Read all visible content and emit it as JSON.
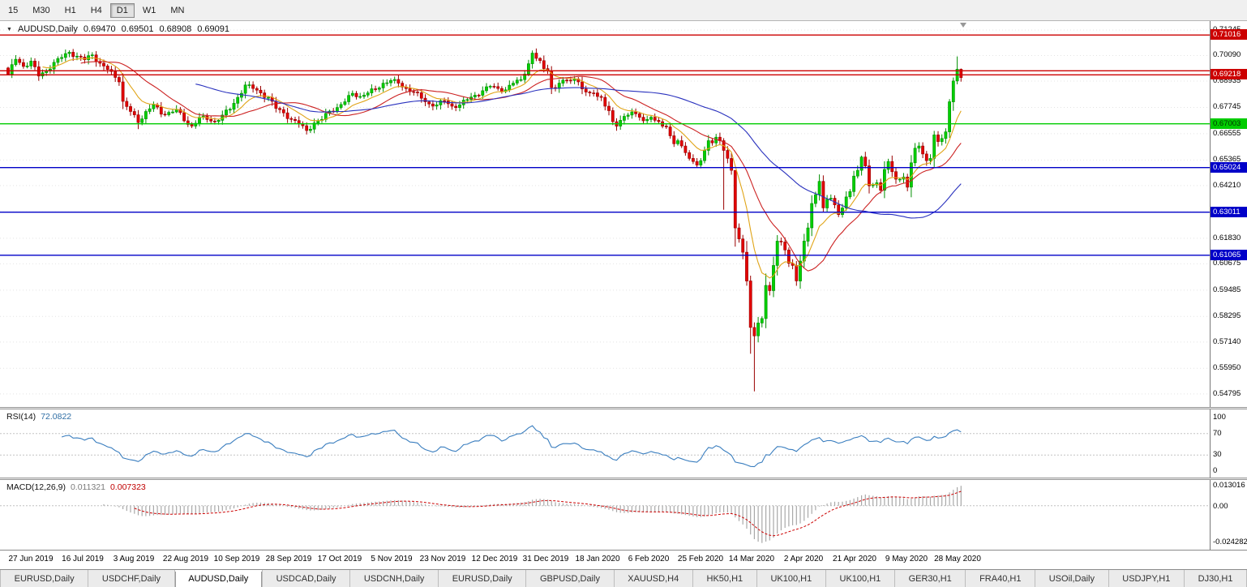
{
  "toolbar": {
    "timeframes": [
      {
        "label": "15",
        "active": false
      },
      {
        "label": "M30",
        "active": false
      },
      {
        "label": "H1",
        "active": false
      },
      {
        "label": "H4",
        "active": false
      },
      {
        "label": "D1",
        "active": true
      },
      {
        "label": "W1",
        "active": false
      },
      {
        "label": "MN",
        "active": false
      }
    ]
  },
  "tabs": {
    "items": [
      {
        "label": "EURUSD,Daily",
        "active": false
      },
      {
        "label": "USDCHF,Daily",
        "active": false
      },
      {
        "label": "AUDUSD,Daily",
        "active": true
      },
      {
        "label": "USDCAD,Daily",
        "active": false
      },
      {
        "label": "USDCNH,Daily",
        "active": false
      },
      {
        "label": "EURUSD,Daily",
        "active": false
      },
      {
        "label": "GBPUSD,Daily",
        "active": false
      },
      {
        "label": "XAUUSD,H4",
        "active": false
      },
      {
        "label": "HK50,H1",
        "active": false
      },
      {
        "label": "UK100,H1",
        "active": false
      },
      {
        "label": "UK100,H1",
        "active": false
      },
      {
        "label": "GER30,H1",
        "active": false
      },
      {
        "label": "FRA40,H1",
        "active": false
      },
      {
        "label": "USOil,Daily",
        "active": false
      },
      {
        "label": "USDJPY,H1",
        "active": false
      },
      {
        "label": "DJ30,H1",
        "active": false
      }
    ]
  },
  "chart_data": {
    "type": "candlestick+indicators",
    "header": {
      "dropdown_icon": "▼",
      "symbol": "AUDUSD,Daily",
      "open": "0.69470",
      "high": "0.69501",
      "low": "0.68908",
      "close": "0.69091"
    },
    "candle_count": 250,
    "price_range": {
      "max": 0.715,
      "min": 0.5435
    },
    "y_axis_labels": [
      "0.71245",
      "0.70090",
      "0.68935",
      "0.67745",
      "0.66555",
      "0.65365",
      "0.64210",
      "0.63020",
      "0.61830",
      "0.60675",
      "0.59485",
      "0.58295",
      "0.57140",
      "0.55950",
      "0.54795"
    ],
    "x_labels": [
      "27 Jun 2019",
      "16 Jul 2019",
      "3 Aug 2019",
      "22 Aug 2019",
      "10 Sep 2019",
      "28 Sep 2019",
      "17 Oct 2019",
      "5 Nov 2019",
      "23 Nov 2019",
      "12 Dec 2019",
      "31 Dec 2019",
      "18 Jan 2020",
      "6 Feb 2020",
      "25 Feb 2020",
      "14 Mar 2020",
      "2 Apr 2020",
      "21 Apr 2020",
      "9 May 2020",
      "28 May 2020"
    ],
    "levels": [
      {
        "price": 0.71016,
        "value": "0.71016",
        "color": "#cc0000",
        "text": "#ffffff",
        "badge": true
      },
      {
        "price": 0.694,
        "value": "0.69400",
        "color": "#cc0000",
        "text": "#ffffff",
        "badge": false
      },
      {
        "price": 0.69218,
        "value": "0.69218",
        "color": "#cc0000",
        "text": "#ffffff",
        "badge": true
      },
      {
        "price": 0.67003,
        "value": "0.67003",
        "color": "#00cc00",
        "text": "#003300",
        "badge": true
      },
      {
        "price": 0.65024,
        "value": "0.65024",
        "color": "#0000c8",
        "text": "#ffffff",
        "badge": true
      },
      {
        "price": 0.63011,
        "value": "0.63011",
        "color": "#0000c8",
        "text": "#ffffff",
        "badge": true
      },
      {
        "price": 0.61065,
        "value": "0.61065",
        "color": "#0000c8",
        "text": "#ffffff",
        "badge": true
      }
    ],
    "colors": {
      "up": "#008f00",
      "up_fill": "#00cf00",
      "down": "#990000",
      "down_fill": "#e30000"
    },
    "moving_averages": [
      {
        "name": "ma-fast-line",
        "kind": "ema",
        "period": 10,
        "color": "#e0a417"
      },
      {
        "name": "ma-mid-line",
        "kind": "sma",
        "period": 20,
        "color": "#cc2222"
      },
      {
        "name": "ma-slow-line",
        "kind": "sma",
        "period": 50,
        "color": "#2a32bE"
      }
    ],
    "close_anchors": [
      [
        0,
        0.6925
      ],
      [
        2,
        0.6992
      ],
      [
        4,
        0.696
      ],
      [
        6,
        0.6984
      ],
      [
        8,
        0.6916
      ],
      [
        10,
        0.694
      ],
      [
        12,
        0.6978
      ],
      [
        14,
        0.7
      ],
      [
        16,
        0.7024
      ],
      [
        18,
        0.7006
      ],
      [
        20,
        0.699
      ],
      [
        22,
        0.7012
      ],
      [
        24,
        0.6974
      ],
      [
        26,
        0.6946
      ],
      [
        28,
        0.691
      ],
      [
        29,
        0.689
      ],
      [
        30,
        0.6802
      ],
      [
        32,
        0.6756
      ],
      [
        34,
        0.6706
      ],
      [
        36,
        0.6756
      ],
      [
        38,
        0.6786
      ],
      [
        40,
        0.6744
      ],
      [
        42,
        0.6752
      ],
      [
        44,
        0.6766
      ],
      [
        46,
        0.6714
      ],
      [
        48,
        0.669
      ],
      [
        50,
        0.673
      ],
      [
        52,
        0.672
      ],
      [
        54,
        0.671
      ],
      [
        56,
        0.674
      ],
      [
        58,
        0.6766
      ],
      [
        60,
        0.682
      ],
      [
        62,
        0.6876
      ],
      [
        64,
        0.686
      ],
      [
        66,
        0.684
      ],
      [
        68,
        0.682
      ],
      [
        70,
        0.677
      ],
      [
        72,
        0.675
      ],
      [
        74,
        0.672
      ],
      [
        76,
        0.67
      ],
      [
        78,
        0.667
      ],
      [
        80,
        0.6704
      ],
      [
        82,
        0.672
      ],
      [
        84,
        0.6758
      ],
      [
        86,
        0.6774
      ],
      [
        88,
        0.68
      ],
      [
        90,
        0.6838
      ],
      [
        92,
        0.6824
      ],
      [
        94,
        0.684
      ],
      [
        96,
        0.6856
      ],
      [
        98,
        0.6884
      ],
      [
        100,
        0.6896
      ],
      [
        102,
        0.6884
      ],
      [
        104,
        0.686
      ],
      [
        106,
        0.6844
      ],
      [
        108,
        0.6816
      ],
      [
        110,
        0.679
      ],
      [
        112,
        0.6786
      ],
      [
        114,
        0.6804
      ],
      [
        116,
        0.678
      ],
      [
        118,
        0.6786
      ],
      [
        120,
        0.681
      ],
      [
        122,
        0.683
      ],
      [
        124,
        0.685
      ],
      [
        126,
        0.687
      ],
      [
        128,
        0.686
      ],
      [
        130,
        0.6854
      ],
      [
        132,
        0.6884
      ],
      [
        134,
        0.69
      ],
      [
        136,
        0.6972
      ],
      [
        137,
        0.702
      ],
      [
        138,
        0.6996
      ],
      [
        139,
        0.6986
      ],
      [
        140,
        0.695
      ],
      [
        141,
        0.694
      ],
      [
        142,
        0.6864
      ],
      [
        143,
        0.686
      ],
      [
        144,
        0.6884
      ],
      [
        145,
        0.6898
      ],
      [
        147,
        0.6896
      ],
      [
        149,
        0.689
      ],
      [
        151,
        0.6844
      ],
      [
        153,
        0.684
      ],
      [
        154,
        0.6824
      ],
      [
        155,
        0.682
      ],
      [
        156,
        0.678
      ],
      [
        157,
        0.676
      ],
      [
        158,
        0.671
      ],
      [
        159,
        0.669
      ],
      [
        160,
        0.6716
      ],
      [
        161,
        0.6734
      ],
      [
        162,
        0.674
      ],
      [
        164,
        0.6746
      ],
      [
        165,
        0.673
      ],
      [
        166,
        0.6714
      ],
      [
        167,
        0.672
      ],
      [
        168,
        0.673
      ],
      [
        169,
        0.6716
      ],
      [
        170,
        0.671
      ],
      [
        171,
        0.669
      ],
      [
        172,
        0.6686
      ],
      [
        173,
        0.6646
      ],
      [
        174,
        0.661
      ],
      [
        175,
        0.6624
      ],
      [
        176,
        0.66
      ],
      [
        177,
        0.657
      ],
      [
        178,
        0.6544
      ],
      [
        179,
        0.653
      ],
      [
        180,
        0.6514
      ],
      [
        181,
        0.6534
      ],
      [
        182,
        0.658
      ],
      [
        183,
        0.6624
      ],
      [
        184,
        0.6614
      ],
      [
        185,
        0.664
      ],
      [
        186,
        0.6624
      ],
      [
        187,
        0.658
      ],
      [
        188,
        0.6544
      ],
      [
        189,
        0.649
      ],
      [
        190,
        0.623
      ],
      [
        191,
        0.618
      ],
      [
        192,
        0.612
      ],
      [
        193,
        0.599
      ],
      [
        194,
        0.578
      ],
      [
        195,
        0.5742
      ],
      [
        196,
        0.58
      ],
      [
        197,
        0.582
      ],
      [
        198,
        0.597
      ],
      [
        199,
        0.5946
      ],
      [
        200,
        0.606
      ],
      [
        201,
        0.617
      ],
      [
        202,
        0.6166
      ],
      [
        203,
        0.613
      ],
      [
        204,
        0.607
      ],
      [
        205,
        0.606
      ],
      [
        206,
        0.599
      ],
      [
        207,
        0.608
      ],
      [
        208,
        0.617
      ],
      [
        209,
        0.623
      ],
      [
        210,
        0.634
      ],
      [
        211,
        0.638
      ],
      [
        212,
        0.644
      ],
      [
        213,
        0.632
      ],
      [
        214,
        0.636
      ],
      [
        215,
        0.6364
      ],
      [
        216,
        0.6334
      ],
      [
        217,
        0.629
      ],
      [
        218,
        0.632
      ],
      [
        219,
        0.637
      ],
      [
        220,
        0.6394
      ],
      [
        221,
        0.6464
      ],
      [
        222,
        0.649
      ],
      [
        223,
        0.655
      ],
      [
        224,
        0.651
      ],
      [
        225,
        0.642
      ],
      [
        226,
        0.6424
      ],
      [
        227,
        0.6434
      ],
      [
        228,
        0.64
      ],
      [
        229,
        0.6494
      ],
      [
        230,
        0.653
      ],
      [
        231,
        0.6484
      ],
      [
        232,
        0.645
      ],
      [
        233,
        0.645
      ],
      [
        234,
        0.646
      ],
      [
        235,
        0.6414
      ],
      [
        236,
        0.6524
      ],
      [
        237,
        0.659
      ],
      [
        238,
        0.66
      ],
      [
        239,
        0.6564
      ],
      [
        240,
        0.6534
      ],
      [
        241,
        0.6544
      ],
      [
        242,
        0.665
      ],
      [
        243,
        0.662
      ],
      [
        244,
        0.6634
      ],
      [
        245,
        0.6664
      ],
      [
        246,
        0.68
      ],
      [
        247,
        0.6894
      ],
      [
        248,
        0.6947
      ],
      [
        249,
        0.6909
      ]
    ],
    "ohlc_overrides": {
      "34": {
        "l": 0.6676
      },
      "137": {
        "h": 0.7032
      },
      "187": {
        "l": 0.6312
      },
      "190": {
        "h": 0.6468
      },
      "194": {
        "l": 0.5661
      },
      "195": {
        "l": 0.5491
      },
      "246": {
        "h": 0.6812
      },
      "248": {
        "h": 0.7005
      },
      "249": {
        "o": 0.6947,
        "h": 0.69501,
        "l": 0.68908,
        "c": 0.69091
      }
    },
    "rsi": {
      "label": "RSI(14)",
      "value": "72.0822",
      "period": 14,
      "levels": [
        "100",
        "70",
        "30",
        "0"
      ],
      "color": "#3a7ebf"
    },
    "macd": {
      "label": "MACD(12,26,9)",
      "value_main": "0.011321",
      "value_signal": "0.007323",
      "fast": 12,
      "slow": 26,
      "signal": 9,
      "axis_labels": [
        "0.013016",
        "0.00",
        "-0.024282"
      ],
      "hist_color": "#a8a8a8",
      "signal_color": "#cc0000"
    }
  }
}
